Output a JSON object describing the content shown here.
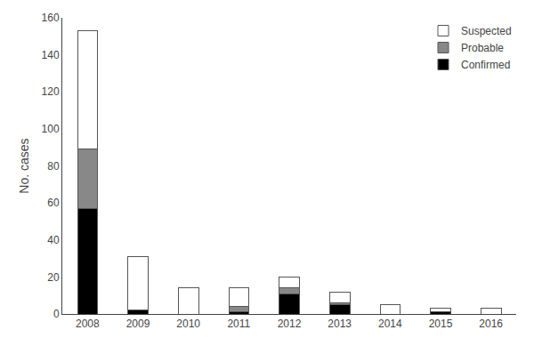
{
  "chart_data": {
    "type": "bar",
    "stacked": true,
    "categories": [
      "2008",
      "2009",
      "2010",
      "2011",
      "2012",
      "2013",
      "2014",
      "2015",
      "2016"
    ],
    "series": [
      {
        "name": "Confirmed",
        "color": "#000000",
        "values": [
          57,
          2,
          0,
          1,
          11,
          5,
          0,
          1,
          0
        ]
      },
      {
        "name": "Probable",
        "color": "#888888",
        "values": [
          32,
          0,
          0,
          3,
          3,
          1,
          0,
          0,
          0
        ]
      },
      {
        "name": "Suspected",
        "color": "#ffffff",
        "values": [
          64,
          29,
          14,
          10,
          6,
          6,
          5,
          2,
          3
        ]
      }
    ],
    "ylabel": "No. cases",
    "ylim": [
      0,
      160
    ],
    "yticks": [
      0,
      20,
      40,
      60,
      80,
      100,
      120,
      140,
      160
    ],
    "grid": false,
    "legend": "upper right"
  }
}
